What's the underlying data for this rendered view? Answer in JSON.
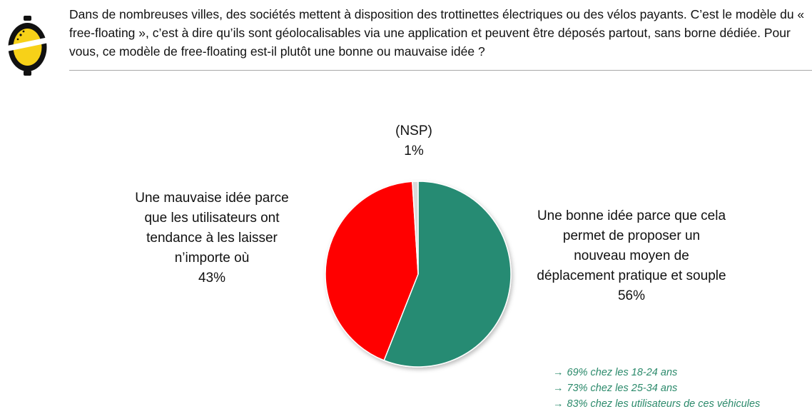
{
  "header": {
    "question": "Dans de nombreuses villes, des sociétés mettent à disposition des trottinettes électriques ou des vélos payants. C’est le modèle du « free-floating », c’est à dire qu’ils sont géolocalisables via une application et peuvent être déposés partout, sans borne dédiée. Pour vous, ce modèle de free-floating est-il plutôt une bonne ou mauvaise idée ?",
    "logo_icon": "yellow-lemon-logo-icon"
  },
  "chart_data": {
    "type": "pie",
    "title": "",
    "slices": [
      {
        "label": "Une bonne idée parce que cela permet de proposer un nouveau moyen de déplacement pratique et souple",
        "value": 56,
        "value_label": "56%",
        "color": "#268b73"
      },
      {
        "label": "Une mauvaise idée parce que les utilisateurs ont tendance à les laisser n’importe où",
        "value": 43,
        "value_label": "43%",
        "color": "#ff0000"
      },
      {
        "label": "(NSP)",
        "value": 1,
        "value_label": "1%",
        "color": "#d9d9d9"
      }
    ]
  },
  "notes": {
    "arrow_glyph": "→",
    "color": "#2b8a6b",
    "lines": [
      "69% chez les 18-24 ans",
      "73% chez les 25-34 ans",
      "83% chez les utilisateurs de ces véhicules"
    ]
  }
}
